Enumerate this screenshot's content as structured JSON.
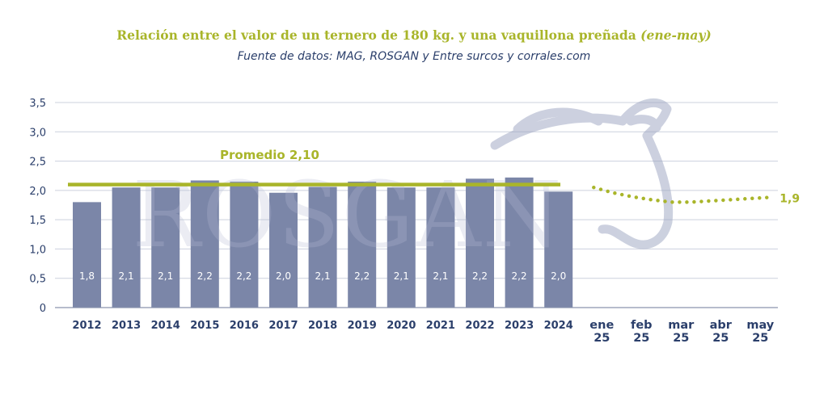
{
  "title": {
    "main": "Relación entre el valor de un ternero de 180 kg. y una vaquillona preñada",
    "period": "(ene-may)"
  },
  "subtitle": "Fuente de datos: MAG, ROSGAN y Entre surcos y corrales.com",
  "watermark": "ROSGAN",
  "colors": {
    "bar": "#7b86a8",
    "average": "#a9b52a",
    "axis_text": "#2b3f6b",
    "grid": "#ccd1de",
    "bar_label": "#ffffff"
  },
  "chart_data": {
    "type": "bar",
    "categories": [
      "2012",
      "2013",
      "2014",
      "2015",
      "2016",
      "2017",
      "2018",
      "2019",
      "2020",
      "2021",
      "2022",
      "2023",
      "2024"
    ],
    "values": [
      1.8,
      2.05,
      2.05,
      2.17,
      2.15,
      1.96,
      2.06,
      2.15,
      2.05,
      2.05,
      2.2,
      2.22,
      1.98
    ],
    "value_labels": [
      "1,8",
      "2,1",
      "2,1",
      "2,2",
      "2,2",
      "2,0",
      "2,1",
      "2,2",
      "2,1",
      "2,1",
      "2,2",
      "2,2",
      "2,0"
    ],
    "average": {
      "value": 2.1,
      "label": "Promedio 2,10"
    },
    "forecast": {
      "categories": [
        [
          "ene",
          "25"
        ],
        [
          "feb",
          "25"
        ],
        [
          "mar",
          "25"
        ],
        [
          "abr",
          "25"
        ],
        [
          "may",
          "25"
        ]
      ],
      "points": [
        {
          "x": 0.0,
          "y": 2.05
        },
        {
          "x": 0.5,
          "y": 1.96
        },
        {
          "x": 1.0,
          "y": 1.89
        },
        {
          "x": 1.5,
          "y": 1.84
        },
        {
          "x": 2.0,
          "y": 1.8
        },
        {
          "x": 2.5,
          "y": 1.8
        },
        {
          "x": 3.0,
          "y": 1.82
        },
        {
          "x": 3.5,
          "y": 1.84
        },
        {
          "x": 4.0,
          "y": 1.86
        },
        {
          "x": 4.5,
          "y": 1.88
        }
      ],
      "end_label": "1,9"
    },
    "yticks": [
      "0",
      "0,5",
      "1,0",
      "1,5",
      "2,0",
      "2,5",
      "3,0",
      "3,5"
    ],
    "ylim": [
      0,
      3.5
    ],
    "grid": true
  }
}
